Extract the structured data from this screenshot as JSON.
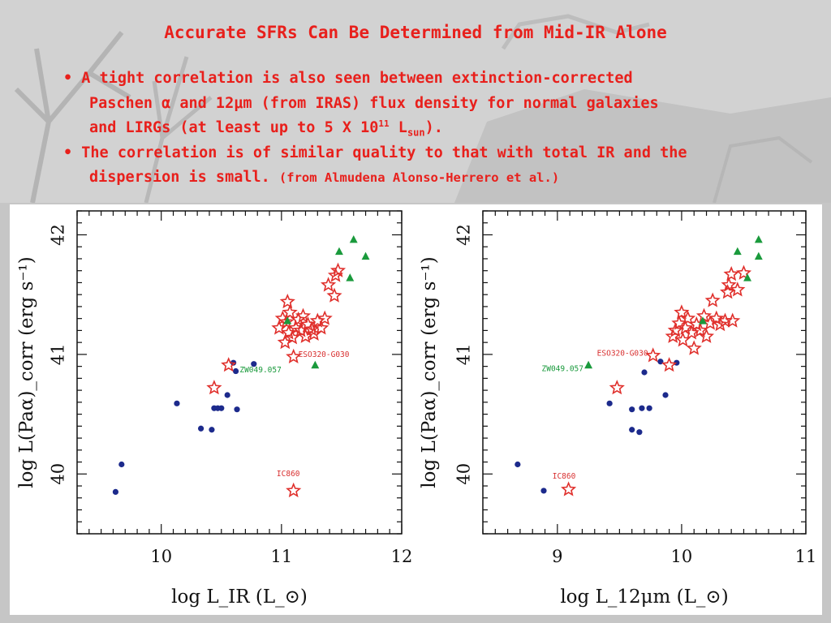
{
  "slide": {
    "title": "Accurate SFRs Can Be Determined from Mid-IR Alone",
    "bullet1": {
      "marker": "•",
      "line1": "A tight correlation is also seen between extinction-corrected",
      "line2": "Paschen α and 12μm (from IRAS) flux density for normal galaxies",
      "line3_prefix": "and LIRGs (at least up to 5 X 10",
      "line3_sup": "11",
      "line3_mid": " L",
      "line3_sub": "sun",
      "line3_suffix": ")."
    },
    "bullet2": {
      "marker": "•",
      "line1": "The correlation is of similar quality to that with total IR and the",
      "line2": "dispersion is small.",
      "note": "(from Almudena Alonso-Herrero et al.)"
    }
  },
  "colors": {
    "text_red": "#e8201c",
    "star_red": "#e0302c",
    "triangle_green": "#1a9a3c",
    "dot_blue": "#1c2a8c",
    "annotation_green": "#1a9a3c",
    "annotation_red": "#d83030"
  },
  "chart_data": [
    {
      "type": "scatter",
      "xlabel": "log L_IR (L_⊙)",
      "ylabel": "log L(Paα)_corr (erg s⁻¹)",
      "xlim": [
        9.3,
        12
      ],
      "ylim": [
        39.5,
        42.2
      ],
      "xticks": [
        "10",
        "11",
        "12"
      ],
      "yticks": [
        "40",
        "41",
        "42"
      ],
      "series": [
        {
          "marker": "circle",
          "points": [
            [
              9.62,
              39.85
            ],
            [
              9.67,
              40.08
            ],
            [
              10.13,
              40.59
            ],
            [
              10.33,
              40.38
            ],
            [
              10.42,
              40.37
            ],
            [
              10.44,
              40.55
            ],
            [
              10.47,
              40.55
            ],
            [
              10.5,
              40.55
            ],
            [
              10.55,
              40.66
            ],
            [
              10.6,
              40.93
            ],
            [
              10.62,
              40.86
            ],
            [
              10.63,
              40.54
            ],
            [
              10.77,
              40.92
            ]
          ]
        },
        {
          "marker": "star",
          "points": [
            [
              10.44,
              40.72
            ],
            [
              10.56,
              40.91
            ],
            [
              10.98,
              41.22
            ],
            [
              11.01,
              41.3
            ],
            [
              11.03,
              41.1
            ],
            [
              11.04,
              41.27
            ],
            [
              11.05,
              41.44
            ],
            [
              11.06,
              41.18
            ],
            [
              11.07,
              41.35
            ],
            [
              11.09,
              41.14
            ],
            [
              11.1,
              40.98
            ],
            [
              11.12,
              41.22
            ],
            [
              11.14,
              41.29
            ],
            [
              11.16,
              41.2
            ],
            [
              11.18,
              41.32
            ],
            [
              11.2,
              41.15
            ],
            [
              11.22,
              41.25
            ],
            [
              11.25,
              41.21
            ],
            [
              11.27,
              41.17
            ],
            [
              11.3,
              41.28
            ],
            [
              11.33,
              41.22
            ],
            [
              11.36,
              41.3
            ],
            [
              11.39,
              41.58
            ],
            [
              11.44,
              41.49
            ],
            [
              11.45,
              41.66
            ],
            [
              11.47,
              41.7
            ],
            [
              11.1,
              39.86
            ]
          ]
        },
        {
          "marker": "triangle",
          "points": [
            [
              11.05,
              41.28
            ],
            [
              11.28,
              40.91
            ],
            [
              11.48,
              41.86
            ],
            [
              11.57,
              41.64
            ],
            [
              11.6,
              41.96
            ],
            [
              11.7,
              41.82
            ]
          ]
        }
      ],
      "annotations": [
        "ZW049.057",
        "ESO320-G030",
        "IC860"
      ]
    },
    {
      "type": "scatter",
      "xlabel": "log L_12μm (L_⊙)",
      "ylabel": "log L(Paα)_corr (erg s⁻¹)",
      "xlim": [
        8.4,
        11
      ],
      "ylim": [
        39.5,
        42.2
      ],
      "xticks": [
        "9",
        "10",
        "11"
      ],
      "yticks": [
        "40",
        "41",
        "42"
      ],
      "series": [
        {
          "marker": "circle",
          "points": [
            [
              8.68,
              40.08
            ],
            [
              8.89,
              39.86
            ],
            [
              9.42,
              40.59
            ],
            [
              9.6,
              40.54
            ],
            [
              9.6,
              40.37
            ],
            [
              9.66,
              40.35
            ],
            [
              9.68,
              40.55
            ],
            [
              9.7,
              40.85
            ],
            [
              9.74,
              40.55
            ],
            [
              9.87,
              40.66
            ],
            [
              9.83,
              40.94
            ],
            [
              9.96,
              40.93
            ]
          ]
        },
        {
          "marker": "star",
          "points": [
            [
              9.09,
              39.87
            ],
            [
              9.48,
              40.72
            ],
            [
              9.77,
              40.99
            ],
            [
              9.9,
              40.91
            ],
            [
              9.93,
              41.15
            ],
            [
              9.95,
              41.2
            ],
            [
              9.98,
              41.26
            ],
            [
              10.0,
              41.35
            ],
            [
              10.01,
              41.12
            ],
            [
              10.03,
              41.22
            ],
            [
              10.05,
              41.3
            ],
            [
              10.08,
              41.18
            ],
            [
              10.1,
              41.05
            ],
            [
              10.12,
              41.25
            ],
            [
              10.15,
              41.2
            ],
            [
              10.18,
              41.32
            ],
            [
              10.2,
              41.15
            ],
            [
              10.23,
              41.26
            ],
            [
              10.25,
              41.45
            ],
            [
              10.28,
              41.3
            ],
            [
              10.31,
              41.25
            ],
            [
              10.35,
              41.28
            ],
            [
              10.38,
              41.58
            ],
            [
              10.4,
              41.67
            ],
            [
              10.41,
              41.28
            ],
            [
              10.45,
              41.54
            ],
            [
              10.5,
              41.68
            ],
            [
              10.37,
              41.52
            ]
          ]
        },
        {
          "marker": "triangle",
          "points": [
            [
              9.25,
              40.91
            ],
            [
              10.17,
              41.28
            ],
            [
              10.45,
              41.86
            ],
            [
              10.53,
              41.64
            ],
            [
              10.62,
              41.96
            ],
            [
              10.62,
              41.82
            ]
          ]
        }
      ],
      "annotations": [
        "ZW049.057",
        "ESO320-G030",
        "IC860"
      ]
    }
  ]
}
